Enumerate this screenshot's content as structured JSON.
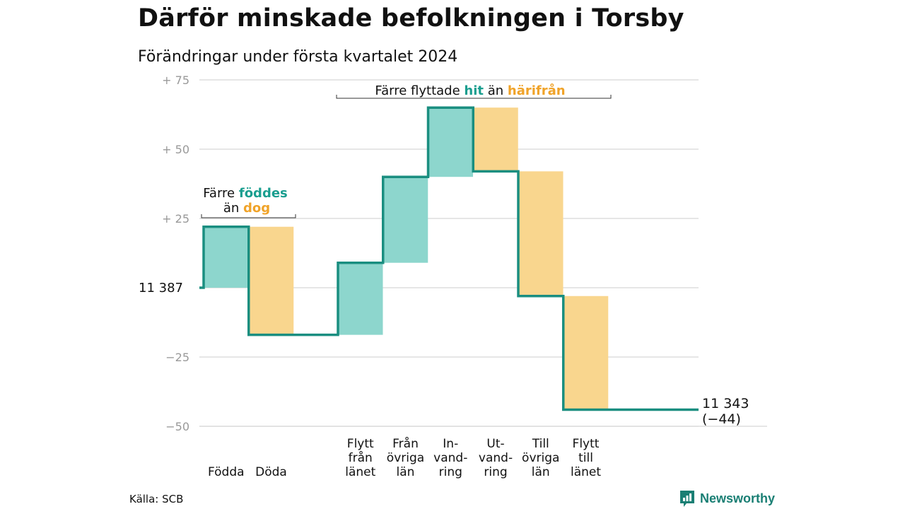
{
  "title": "Därför minskade befolkningen i Torsby",
  "subtitle": "Förändringar under första kvartalet 2024",
  "source": "Källa: SCB",
  "brand": "Newsworthy",
  "colors": {
    "increase": "#8dd6cd",
    "decrease": "#f9d68e",
    "line": "#1a8e80",
    "teal_text": "#1a9e8f",
    "orange_text": "#f0a329",
    "grid": "#dddddd",
    "tick": "#999999"
  },
  "chart_data": {
    "type": "waterfall",
    "baseline_label": "11  387",
    "end_label": [
      "11 343",
      "(−44)"
    ],
    "ylim": [
      -50,
      75
    ],
    "yticks": [
      {
        "value": 75,
        "label": "+  75"
      },
      {
        "value": 50,
        "label": "+  50"
      },
      {
        "value": 25,
        "label": "+  25"
      },
      {
        "value": -25,
        "label": "−25"
      },
      {
        "value": -50,
        "label": "−50"
      }
    ],
    "steps": [
      {
        "label": [
          "Födda"
        ],
        "change": 22,
        "kind": "increase"
      },
      {
        "label": [
          "Döda"
        ],
        "change": -39,
        "kind": "decrease"
      },
      {
        "label": [
          "Flytt",
          "från",
          "länet"
        ],
        "change": 26,
        "kind": "increase"
      },
      {
        "label": [
          "Från",
          "övriga",
          "län"
        ],
        "change": 31,
        "kind": "increase"
      },
      {
        "label": [
          "In-",
          "vand-",
          "ring"
        ],
        "change": 25,
        "kind": "increase"
      },
      {
        "label": [
          "Ut-",
          "vand-",
          "ring"
        ],
        "change": -23,
        "kind": "decrease"
      },
      {
        "label": [
          "Till",
          "övriga",
          "län"
        ],
        "change": -45,
        "kind": "decrease"
      },
      {
        "label": [
          "Flytt",
          "till",
          "länet"
        ],
        "change": -41,
        "kind": "decrease"
      }
    ],
    "annotations": [
      {
        "lines": [
          [
            {
              "text": "Färre ",
              "style": "plain"
            },
            {
              "text": "föddes",
              "style": "teal"
            }
          ],
          [
            {
              "text": "än ",
              "style": "plain"
            },
            {
              "text": "dog",
              "style": "orange"
            }
          ]
        ]
      },
      {
        "lines": [
          [
            {
              "text": "Färre flyttade ",
              "style": "plain"
            },
            {
              "text": "hit",
              "style": "teal"
            },
            {
              "text": " än ",
              "style": "plain"
            },
            {
              "text": "härifrån",
              "style": "orange"
            }
          ]
        ]
      }
    ]
  }
}
